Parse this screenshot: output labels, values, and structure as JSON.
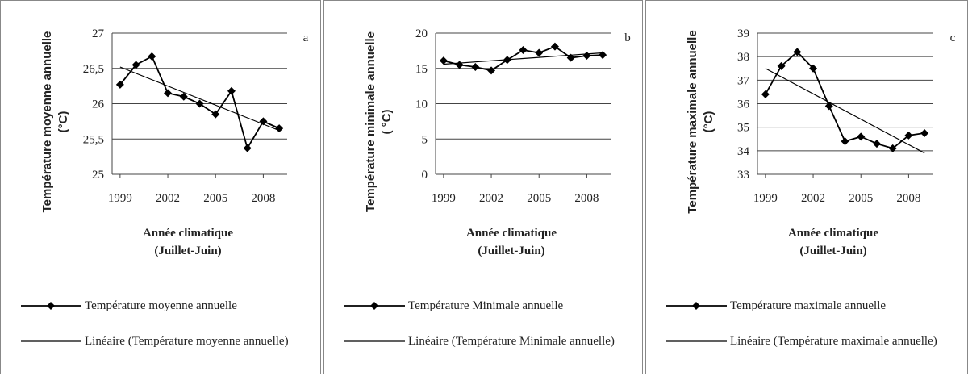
{
  "chart_data": [
    {
      "type": "line",
      "annotation": "a",
      "y_label": [
        "Température moyenne annuelle",
        "(°C)"
      ],
      "x_label": [
        "Année climatique",
        "(Juillet-Juin)"
      ],
      "x": [
        1999,
        2000,
        2001,
        2002,
        2003,
        2004,
        2005,
        2006,
        2007,
        2008,
        2009
      ],
      "xlim": [
        1998.5,
        2009.5
      ],
      "xticks": [
        1999,
        2002,
        2005,
        2008
      ],
      "ylim": [
        25,
        27
      ],
      "yticks": [
        25,
        {
          "value": 25.5,
          "label": "25,5"
        },
        26,
        {
          "value": 26.5,
          "label": "26,5"
        },
        27
      ],
      "grid": true,
      "series": [
        {
          "name": "Température moyenne annuelle",
          "color": "#000000",
          "marker": "diamond",
          "values": [
            26.27,
            26.55,
            26.67,
            26.15,
            26.1,
            26.0,
            25.85,
            26.18,
            25.37,
            25.75,
            25.65
          ]
        },
        {
          "name": "Linéaire (Température moyenne annuelle)",
          "color": "#000000",
          "marker": "none",
          "values": [
            26.52,
            26.43,
            26.34,
            26.25,
            26.16,
            26.07,
            25.98,
            25.89,
            25.8,
            25.71,
            25.62
          ]
        }
      ]
    },
    {
      "type": "line",
      "annotation": "b",
      "y_label": [
        "Température minimale annuelle",
        "( °C)"
      ],
      "x_label": [
        "Année climatique",
        "(Juillet-Juin)"
      ],
      "x": [
        1999,
        2000,
        2001,
        2002,
        2003,
        2004,
        2005,
        2006,
        2007,
        2008,
        2009
      ],
      "xlim": [
        1998.5,
        2009.5
      ],
      "xticks": [
        1999,
        2002,
        2005,
        2008
      ],
      "ylim": [
        0,
        20
      ],
      "yticks": [
        0,
        5,
        10,
        15,
        20
      ],
      "grid": true,
      "series": [
        {
          "name": "Température Minimale annuelle",
          "color": "#000000",
          "marker": "diamond",
          "values": [
            16.1,
            15.5,
            15.2,
            14.7,
            16.2,
            17.6,
            17.2,
            18.1,
            16.5,
            16.8,
            16.9
          ]
        },
        {
          "name": "Linéaire (Température Minimale annuelle)",
          "color": "#000000",
          "marker": "none",
          "values": [
            15.6,
            15.76,
            15.92,
            16.08,
            16.24,
            16.4,
            16.56,
            16.72,
            16.88,
            17.04,
            17.2
          ]
        }
      ]
    },
    {
      "type": "line",
      "annotation": "c",
      "y_label": [
        "Température maximale annuelle",
        "(°C)"
      ],
      "x_label": [
        "Année climatique",
        "(Juillet-Juin)"
      ],
      "x": [
        1999,
        2000,
        2001,
        2002,
        2003,
        2004,
        2005,
        2006,
        2007,
        2008,
        2009
      ],
      "xlim": [
        1998.5,
        2009.5
      ],
      "xticks": [
        1999,
        2002,
        2005,
        2008
      ],
      "ylim": [
        33,
        39
      ],
      "yticks": [
        33,
        34,
        35,
        36,
        37,
        38,
        39
      ],
      "grid": true,
      "series": [
        {
          "name": "Température maximale annuelle",
          "color": "#000000",
          "marker": "diamond",
          "values": [
            36.4,
            37.6,
            38.2,
            37.5,
            35.9,
            34.4,
            34.6,
            34.3,
            34.1,
            34.65,
            34.75
          ]
        },
        {
          "name": "Linéaire (Température maximale annuelle)",
          "color": "#000000",
          "marker": "none",
          "values": [
            37.5,
            37.14,
            36.78,
            36.42,
            36.06,
            35.7,
            35.34,
            34.98,
            34.62,
            34.26,
            33.9
          ]
        }
      ]
    }
  ]
}
